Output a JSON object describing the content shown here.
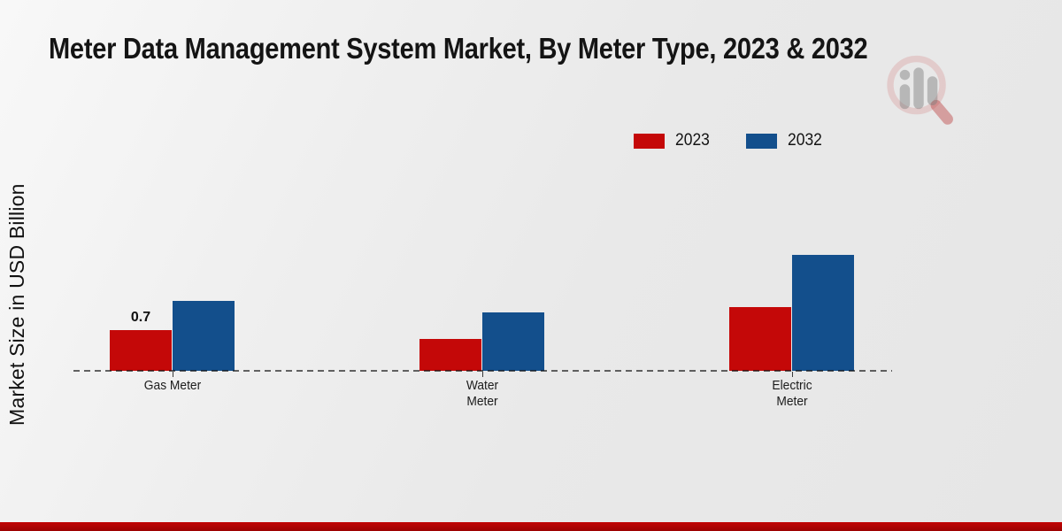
{
  "title": "Meter Data Management System Market, By Meter Type, 2023 & 2032",
  "y_axis_label": "Market Size in USD Billion",
  "legend": {
    "position": "top-right",
    "items": [
      {
        "label": "2023",
        "color": "#c40808"
      },
      {
        "label": "2032",
        "color": "#134f8c"
      }
    ]
  },
  "chart_data": {
    "type": "bar",
    "categories": [
      "Gas Meter",
      "Water Meter",
      "Electric Meter"
    ],
    "categories_wrapped": [
      [
        "Gas Meter"
      ],
      [
        "Water",
        "Meter"
      ],
      [
        "Electric",
        "Meter"
      ]
    ],
    "series": [
      {
        "name": "2023",
        "color": "#c40808",
        "values": [
          0.7,
          0.55,
          1.1
        ]
      },
      {
        "name": "2032",
        "color": "#134f8c",
        "values": [
          1.2,
          1.0,
          2.0
        ]
      }
    ],
    "data_labels": [
      {
        "category_index": 0,
        "series_index": 0,
        "text": "0.7"
      }
    ],
    "title": "Meter Data Management System Market, By Meter Type, 2023 & 2032",
    "xlabel": "",
    "ylabel": "Market Size in USD Billion",
    "ylim": [
      0,
      2.2
    ],
    "grid": false,
    "baseline_style": "dashed",
    "legend_position": "top-right"
  },
  "watermark": {
    "icon": "mrfr-magnifier-bars-logo"
  },
  "footer": {
    "accent_color": "#b30404"
  },
  "colors": {
    "background": "#ebebeb",
    "title_text": "#141414",
    "axis_text": "#1c1c1c"
  }
}
